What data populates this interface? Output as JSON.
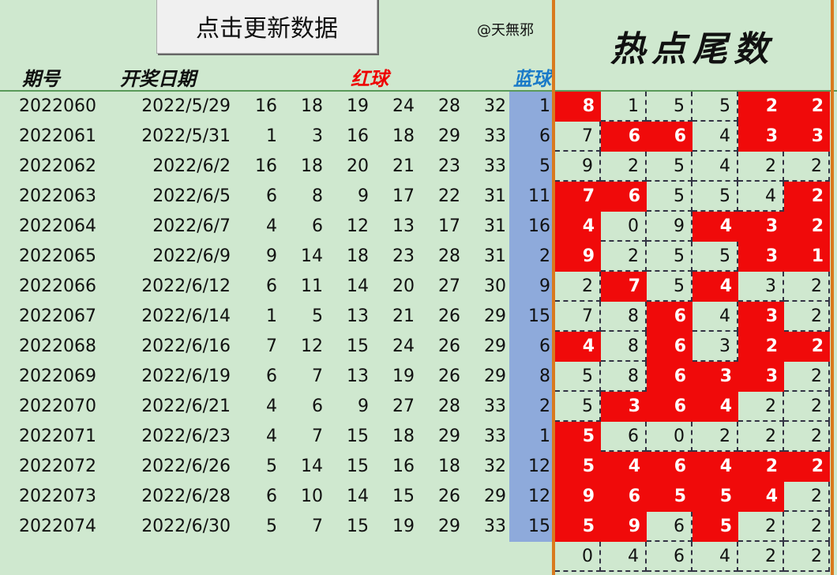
{
  "toolbar": {
    "update_button": "点击更新数据",
    "author": "@天無邪"
  },
  "headers": {
    "period": "期号",
    "date": "开奖日期",
    "red": "红球",
    "blue": "蓝球"
  },
  "hot_title": "热点尾数",
  "colors": {
    "hot": "#f00a0a",
    "background": "#cfe8cf",
    "blue_column": "#8eaadb",
    "border": "#d97a1e"
  },
  "draws": [
    {
      "period": "2022060",
      "date": "2022/5/29",
      "red": [
        "16",
        "18",
        "19",
        "24",
        "28",
        "32"
      ],
      "blue": "1"
    },
    {
      "period": "2022061",
      "date": "2022/5/31",
      "red": [
        "1",
        "3",
        "16",
        "18",
        "29",
        "33"
      ],
      "blue": "6"
    },
    {
      "period": "2022062",
      "date": "2022/6/2",
      "red": [
        "16",
        "18",
        "20",
        "21",
        "23",
        "33"
      ],
      "blue": "5"
    },
    {
      "period": "2022063",
      "date": "2022/6/5",
      "red": [
        "6",
        "8",
        "9",
        "17",
        "22",
        "31"
      ],
      "blue": "11"
    },
    {
      "period": "2022064",
      "date": "2022/6/7",
      "red": [
        "4",
        "6",
        "12",
        "13",
        "17",
        "31"
      ],
      "blue": "16"
    },
    {
      "period": "2022065",
      "date": "2022/6/9",
      "red": [
        "9",
        "14",
        "18",
        "23",
        "28",
        "31"
      ],
      "blue": "2"
    },
    {
      "period": "2022066",
      "date": "2022/6/12",
      "red": [
        "6",
        "11",
        "14",
        "20",
        "27",
        "30"
      ],
      "blue": "9"
    },
    {
      "period": "2022067",
      "date": "2022/6/14",
      "red": [
        "1",
        "5",
        "13",
        "21",
        "26",
        "29"
      ],
      "blue": "15"
    },
    {
      "period": "2022068",
      "date": "2022/6/16",
      "red": [
        "7",
        "12",
        "15",
        "24",
        "26",
        "29"
      ],
      "blue": "6"
    },
    {
      "period": "2022069",
      "date": "2022/6/19",
      "red": [
        "6",
        "7",
        "13",
        "19",
        "26",
        "29"
      ],
      "blue": "8"
    },
    {
      "period": "2022070",
      "date": "2022/6/21",
      "red": [
        "4",
        "6",
        "9",
        "27",
        "28",
        "33"
      ],
      "blue": "2"
    },
    {
      "period": "2022071",
      "date": "2022/6/23",
      "red": [
        "4",
        "7",
        "15",
        "18",
        "29",
        "33"
      ],
      "blue": "1"
    },
    {
      "period": "2022072",
      "date": "2022/6/26",
      "red": [
        "5",
        "14",
        "15",
        "16",
        "18",
        "32"
      ],
      "blue": "12"
    },
    {
      "period": "2022073",
      "date": "2022/6/28",
      "red": [
        "6",
        "10",
        "14",
        "15",
        "26",
        "29"
      ],
      "blue": "12"
    },
    {
      "period": "2022074",
      "date": "2022/6/30",
      "red": [
        "5",
        "7",
        "15",
        "19",
        "29",
        "33"
      ],
      "blue": "15"
    }
  ],
  "hot_grid": [
    {
      "values": [
        "8",
        "1",
        "5",
        "5",
        "2",
        "2"
      ],
      "hot": [
        1,
        0,
        0,
        0,
        1,
        1
      ]
    },
    {
      "values": [
        "7",
        "6",
        "6",
        "4",
        "3",
        "3"
      ],
      "hot": [
        0,
        1,
        1,
        0,
        1,
        1
      ]
    },
    {
      "values": [
        "9",
        "2",
        "5",
        "4",
        "2",
        "2"
      ],
      "hot": [
        0,
        0,
        0,
        0,
        0,
        0
      ]
    },
    {
      "values": [
        "7",
        "6",
        "5",
        "5",
        "4",
        "2"
      ],
      "hot": [
        1,
        1,
        0,
        0,
        0,
        1
      ]
    },
    {
      "values": [
        "4",
        "0",
        "9",
        "4",
        "3",
        "2"
      ],
      "hot": [
        1,
        0,
        0,
        1,
        1,
        1
      ]
    },
    {
      "values": [
        "9",
        "2",
        "5",
        "5",
        "3",
        "1"
      ],
      "hot": [
        1,
        0,
        0,
        0,
        1,
        1
      ]
    },
    {
      "values": [
        "2",
        "7",
        "5",
        "4",
        "3",
        "2"
      ],
      "hot": [
        0,
        1,
        0,
        1,
        0,
        0
      ]
    },
    {
      "values": [
        "7",
        "8",
        "6",
        "4",
        "3",
        "2"
      ],
      "hot": [
        0,
        0,
        1,
        0,
        1,
        0
      ]
    },
    {
      "values": [
        "4",
        "8",
        "6",
        "3",
        "2",
        "2"
      ],
      "hot": [
        1,
        0,
        1,
        0,
        1,
        1
      ]
    },
    {
      "values": [
        "5",
        "8",
        "6",
        "3",
        "3",
        "2"
      ],
      "hot": [
        0,
        0,
        1,
        1,
        1,
        0
      ]
    },
    {
      "values": [
        "5",
        "3",
        "6",
        "4",
        "2",
        "2"
      ],
      "hot": [
        0,
        1,
        1,
        1,
        0,
        0
      ]
    },
    {
      "values": [
        "5",
        "6",
        "0",
        "2",
        "2",
        "2"
      ],
      "hot": [
        1,
        0,
        0,
        0,
        0,
        0
      ]
    },
    {
      "values": [
        "5",
        "4",
        "6",
        "4",
        "2",
        "2"
      ],
      "hot": [
        1,
        1,
        1,
        1,
        1,
        1
      ]
    },
    {
      "values": [
        "9",
        "6",
        "5",
        "5",
        "4",
        "2"
      ],
      "hot": [
        1,
        1,
        1,
        1,
        1,
        0
      ]
    },
    {
      "values": [
        "5",
        "9",
        "6",
        "5",
        "2",
        "2"
      ],
      "hot": [
        1,
        1,
        0,
        1,
        0,
        0
      ]
    },
    {
      "values": [
        "0",
        "4",
        "6",
        "4",
        "2",
        "2"
      ],
      "hot": [
        0,
        0,
        0,
        0,
        0,
        0
      ]
    }
  ]
}
